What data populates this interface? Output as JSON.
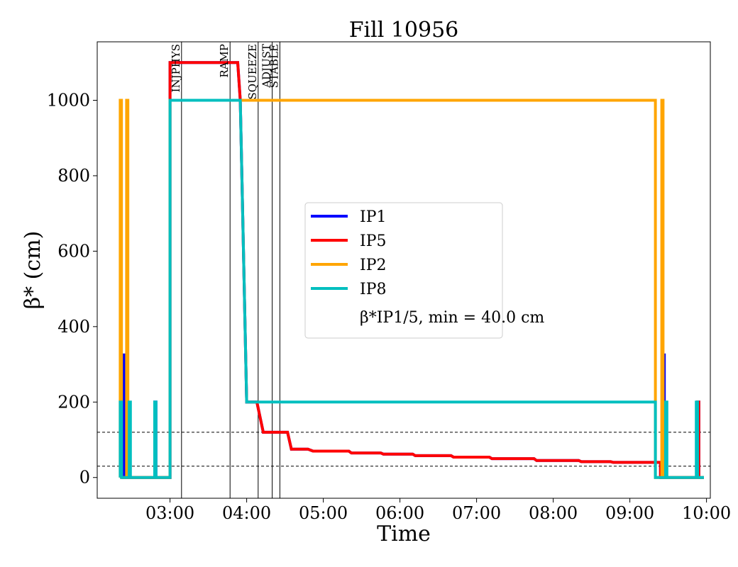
{
  "chart_data": {
    "type": "line",
    "title": "Fill 10956",
    "xlabel": "Time",
    "ylabel": "β* (cm)",
    "x_unit": "time of day (HH:MM)",
    "xlim": [
      "02:03",
      "10:03"
    ],
    "ylim": [
      -55,
      1155
    ],
    "x_ticks": [
      "03:00",
      "04:00",
      "05:00",
      "06:00",
      "07:00",
      "08:00",
      "09:00",
      "10:00"
    ],
    "y_ticks": [
      0,
      200,
      400,
      600,
      800,
      1000
    ],
    "grid": false,
    "legend_position": "center",
    "legend_note": "β*IP1/5, min = 40.0 cm",
    "phases": [
      {
        "label": "INJPHYS",
        "time": "03:09"
      },
      {
        "label": "RAMP",
        "time": "03:47"
      },
      {
        "label": "SQUEEZE",
        "time": "04:09"
      },
      {
        "label": "ADJUST",
        "time": "04:20"
      },
      {
        "label": "STABLE",
        "time": "04:26"
      }
    ],
    "reference_lines": [
      {
        "y": 120,
        "style": "dashed"
      },
      {
        "y": 30,
        "style": "dashed"
      }
    ],
    "series": [
      {
        "name": "IP1",
        "color": "#0000ff",
        "points": [
          [
            "02:22",
            0
          ],
          [
            "02:24",
            0
          ],
          [
            "02:24",
            325
          ],
          [
            "02:25",
            325
          ],
          [
            "02:25",
            0
          ],
          [
            "02:48",
            0
          ],
          [
            "02:48",
            200
          ],
          [
            "02:49",
            200
          ],
          [
            "02:49",
            0
          ],
          [
            "03:00",
            0
          ],
          [
            "03:00",
            1100
          ],
          [
            "03:53",
            1100
          ],
          [
            "03:55",
            1000
          ],
          [
            "04:00",
            200
          ],
          [
            "04:08",
            200
          ],
          [
            "04:13",
            120
          ],
          [
            "04:32",
            120
          ],
          [
            "04:35",
            75
          ],
          [
            "04:48",
            75
          ],
          [
            "04:52",
            70
          ],
          [
            "05:20",
            70
          ],
          [
            "05:22",
            65
          ],
          [
            "05:45",
            65
          ],
          [
            "05:47",
            62
          ],
          [
            "06:10",
            62
          ],
          [
            "06:12",
            58
          ],
          [
            "06:40",
            58
          ],
          [
            "06:42",
            54
          ],
          [
            "07:10",
            54
          ],
          [
            "07:12",
            50
          ],
          [
            "07:45",
            50
          ],
          [
            "07:47",
            45
          ],
          [
            "08:20",
            45
          ],
          [
            "08:22",
            42
          ],
          [
            "08:45",
            42
          ],
          [
            "08:47",
            40
          ],
          [
            "09:24",
            40
          ],
          [
            "09:24",
            0
          ],
          [
            "09:26",
            0
          ],
          [
            "09:26",
            325
          ],
          [
            "09:27",
            325
          ],
          [
            "09:27",
            0
          ],
          [
            "09:53",
            0
          ],
          [
            "09:53",
            200
          ],
          [
            "09:54",
            200
          ],
          [
            "09:54",
            0
          ],
          [
            "09:58",
            0
          ]
        ]
      },
      {
        "name": "IP5",
        "color": "#ff0000",
        "points": [
          [
            "02:22",
            0
          ],
          [
            "03:00",
            0
          ],
          [
            "03:00",
            1100
          ],
          [
            "03:53",
            1100
          ],
          [
            "03:55",
            1000
          ],
          [
            "04:00",
            200
          ],
          [
            "04:08",
            200
          ],
          [
            "04:13",
            120
          ],
          [
            "04:32",
            120
          ],
          [
            "04:35",
            75
          ],
          [
            "04:48",
            75
          ],
          [
            "04:52",
            70
          ],
          [
            "05:20",
            70
          ],
          [
            "05:22",
            65
          ],
          [
            "05:45",
            65
          ],
          [
            "05:47",
            62
          ],
          [
            "06:10",
            62
          ],
          [
            "06:12",
            58
          ],
          [
            "06:40",
            58
          ],
          [
            "06:42",
            54
          ],
          [
            "07:10",
            54
          ],
          [
            "07:12",
            50
          ],
          [
            "07:45",
            50
          ],
          [
            "07:47",
            45
          ],
          [
            "08:20",
            45
          ],
          [
            "08:22",
            42
          ],
          [
            "08:45",
            42
          ],
          [
            "08:47",
            40
          ],
          [
            "09:24",
            40
          ],
          [
            "09:24",
            0
          ],
          [
            "09:53",
            0
          ],
          [
            "09:53",
            200
          ],
          [
            "09:54",
            200
          ],
          [
            "09:54",
            0
          ],
          [
            "09:58",
            0
          ]
        ]
      },
      {
        "name": "IP2",
        "color": "#ffa500",
        "points": [
          [
            "02:21",
            0
          ],
          [
            "02:21",
            1000
          ],
          [
            "02:22",
            1000
          ],
          [
            "02:22",
            0
          ],
          [
            "02:26",
            0
          ],
          [
            "02:26",
            1000
          ],
          [
            "02:27",
            1000
          ],
          [
            "02:27",
            0
          ],
          [
            "03:00",
            0
          ],
          [
            "03:00",
            1000
          ],
          [
            "03:55",
            1000
          ],
          [
            "09:20",
            1000
          ],
          [
            "09:20",
            0
          ],
          [
            "09:25",
            0
          ],
          [
            "09:25",
            1000
          ],
          [
            "09:26",
            1000
          ],
          [
            "09:26",
            0
          ],
          [
            "09:58",
            0
          ]
        ]
      },
      {
        "name": "IP8",
        "color": "#00bfbf",
        "points": [
          [
            "02:21",
            0
          ],
          [
            "02:21",
            200
          ],
          [
            "02:22",
            200
          ],
          [
            "02:22",
            0
          ],
          [
            "02:28",
            0
          ],
          [
            "02:28",
            200
          ],
          [
            "02:29",
            200
          ],
          [
            "02:29",
            0
          ],
          [
            "02:48",
            0
          ],
          [
            "02:48",
            200
          ],
          [
            "02:49",
            200
          ],
          [
            "02:49",
            0
          ],
          [
            "03:00",
            0
          ],
          [
            "03:00",
            1000
          ],
          [
            "03:55",
            1000
          ],
          [
            "04:00",
            200
          ],
          [
            "09:20",
            200
          ],
          [
            "09:20",
            0
          ],
          [
            "09:28",
            0
          ],
          [
            "09:28",
            200
          ],
          [
            "09:29",
            200
          ],
          [
            "09:29",
            0
          ],
          [
            "09:52",
            0
          ],
          [
            "09:52",
            200
          ],
          [
            "09:53",
            200
          ],
          [
            "09:53",
            0
          ],
          [
            "09:58",
            0
          ]
        ]
      }
    ]
  }
}
